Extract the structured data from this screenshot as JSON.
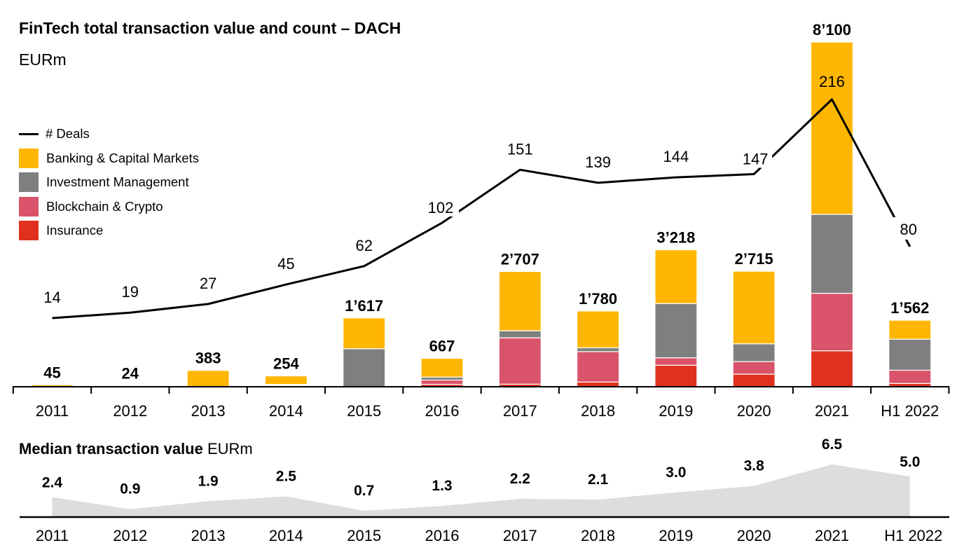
{
  "chart_data": [
    {
      "type": "bar",
      "stacked": true,
      "title": "FinTech total transaction value and count – DACH",
      "subtitle": "EURm",
      "categories": [
        "2011",
        "2012",
        "2013",
        "2014",
        "2015",
        "2016",
        "2017",
        "2018",
        "2019",
        "2020",
        "2021",
        "H1 2022"
      ],
      "totals": [
        "45",
        "24",
        "383",
        "254",
        "1’617",
        "667",
        "2’707",
        "1’780",
        "3’218",
        "2’715",
        "8’100",
        "1’562"
      ],
      "series": [
        {
          "name": "Insurance",
          "color": "#E0301E",
          "values": [
            0,
            0,
            0,
            14,
            0,
            57,
            60,
            110,
            505,
            296,
            846,
            78
          ]
        },
        {
          "name": "Blockchain & Crypto",
          "color": "#D9536A",
          "values": [
            0,
            0,
            0,
            20,
            0,
            100,
            1090,
            715,
            176,
            296,
            1350,
            310
          ]
        },
        {
          "name": "Investment Management",
          "color": "#7F7F7F",
          "values": [
            0,
            0,
            0,
            20,
            893,
            70,
            165,
            90,
            1273,
            418,
            1854,
            730
          ]
        },
        {
          "name": "Banking & Capital Markets",
          "color": "#FFB600",
          "values": [
            45,
            24,
            383,
            200,
            724,
            440,
            1392,
            865,
            1264,
            1705,
            4050,
            444
          ]
        }
      ],
      "line": {
        "name": "# Deals",
        "color": "#000000",
        "values": [
          14,
          19,
          27,
          45,
          62,
          102,
          151,
          139,
          144,
          147,
          216,
          80
        ]
      },
      "ylim": [
        0,
        8100
      ],
      "grid": false,
      "legend": "top-left"
    },
    {
      "type": "area",
      "title": "Median transaction value",
      "unit": "EURm",
      "categories": [
        "2011",
        "2012",
        "2013",
        "2014",
        "2015",
        "2016",
        "2017",
        "2018",
        "2019",
        "2020",
        "2021",
        "H1 2022"
      ],
      "values": [
        2.4,
        0.9,
        1.9,
        2.5,
        0.7,
        1.3,
        2.2,
        2.1,
        3.0,
        3.8,
        6.5,
        5.0
      ],
      "labels": [
        "2.4",
        "0.9",
        "1.9",
        "2.5",
        "0.7",
        "1.3",
        "2.2",
        "2.1",
        "3.0",
        "3.8",
        "6.5",
        "5.0"
      ],
      "color": "#DDDDDD",
      "ylim": [
        0,
        6.5
      ]
    }
  ]
}
